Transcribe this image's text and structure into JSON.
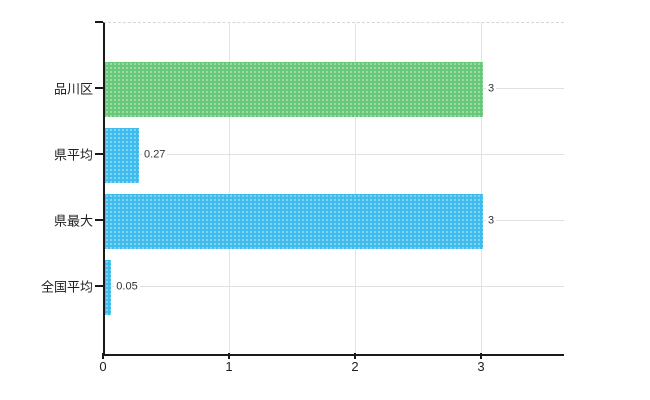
{
  "chart": {
    "background_color": "#ffffff",
    "axis_color": "#1a1a1a",
    "grid_color": "#e0e0e0",
    "top_border_style": "dashed"
  },
  "chart_data": {
    "type": "bar",
    "orientation": "horizontal",
    "title": "",
    "xlabel": "",
    "ylabel": "",
    "categories": [
      "品川区",
      "県平均",
      "県最大",
      "全国平均"
    ],
    "values": [
      3,
      0.27,
      3,
      0.05
    ],
    "value_labels": [
      "3",
      "0.27",
      "3",
      "0.05"
    ],
    "bar_colors": [
      "#68c87a",
      "#3fbcee",
      "#3fbcee",
      "#3fbcee"
    ],
    "x_ticks": [
      "0",
      "1",
      "2",
      "3"
    ],
    "xlim": [
      0,
      3.65
    ],
    "grid": true,
    "legend": false
  }
}
